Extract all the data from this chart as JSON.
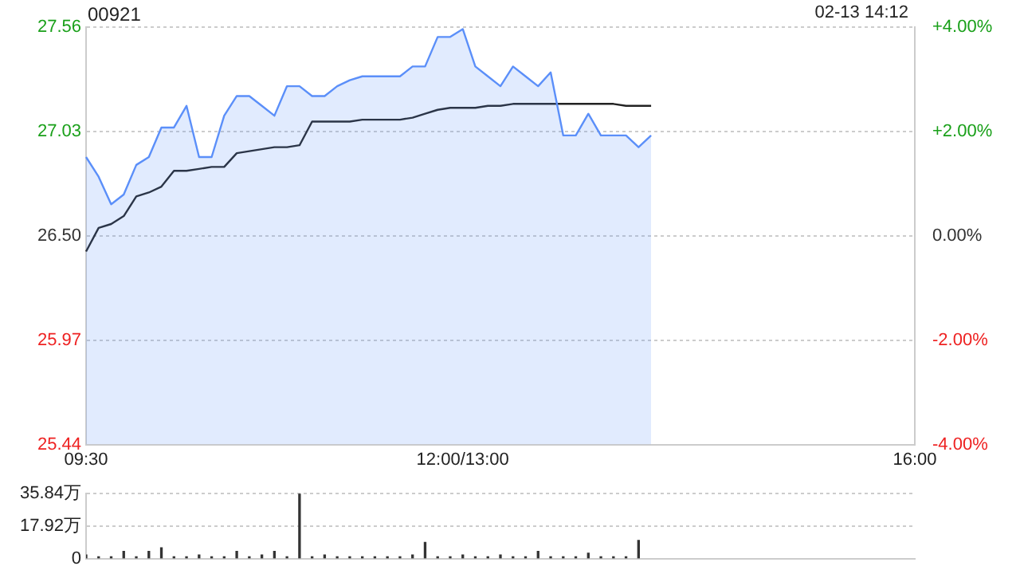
{
  "chart_data": [
    {
      "type": "line",
      "title": "00921",
      "subtitle": "02-13 14:12",
      "marker": "none",
      "grid": "y",
      "legend": false,
      "categories": [
        "09:30",
        null,
        null,
        null,
        null,
        null,
        null,
        null,
        null,
        null,
        null,
        null,
        null,
        null,
        null,
        null,
        null,
        null,
        null,
        null,
        null,
        null,
        null,
        null,
        null,
        null,
        null,
        null,
        null,
        null,
        "12:00/13:00",
        null,
        null,
        null,
        null,
        null,
        null,
        null,
        null,
        null,
        null,
        null,
        null,
        null,
        null,
        null,
        null,
        null,
        null,
        null,
        null,
        null,
        null,
        null,
        null,
        null,
        null,
        null,
        null,
        null,
        null,
        null,
        null,
        null,
        null,
        null,
        "16:00"
      ],
      "ylim": [
        25.44,
        27.56
      ],
      "yticks": [
        25.44,
        25.97,
        {
          "value": 26.5,
          "label": "26.50"
        },
        27.03,
        27.56
      ],
      "y2lim": [
        -4,
        4
      ],
      "y2ticks": [
        {
          "value": -4,
          "label": "-4.00%"
        },
        {
          "value": -2,
          "label": "-2.00%"
        },
        {
          "value": 0,
          "label": "0.00%"
        },
        {
          "value": 2,
          "label": "+2.00%"
        },
        {
          "value": 4,
          "label": "+4.00%"
        }
      ],
      "series": [
        {
          "type": "area",
          "color": "#5b8ff9",
          "values": [
            26.9,
            26.8,
            26.66,
            26.71,
            26.86,
            26.9,
            27.05,
            27.05,
            27.16,
            26.9,
            26.9,
            27.11,
            27.21,
            27.21,
            27.16,
            27.11,
            27.26,
            27.26,
            27.21,
            27.21,
            27.26,
            27.29,
            27.31,
            27.31,
            27.31,
            27.31,
            27.36,
            27.36,
            27.51,
            27.51,
            27.55,
            27.36,
            27.31,
            27.26,
            27.36,
            27.31,
            27.26,
            27.33,
            27.01,
            27.01,
            27.12,
            27.01,
            27.01,
            27.01,
            26.95,
            27.01,
            null,
            null,
            null,
            null,
            null,
            null,
            null,
            null,
            null,
            null,
            null,
            null,
            null,
            null,
            null,
            null,
            null,
            null,
            null,
            null,
            null
          ]
        },
        {
          "type": "line",
          "color": "#222222",
          "values": [
            26.42,
            26.54,
            26.56,
            26.6,
            26.7,
            26.72,
            26.75,
            26.83,
            26.83,
            26.84,
            26.85,
            26.85,
            26.92,
            26.93,
            26.94,
            26.95,
            26.95,
            26.96,
            27.08,
            27.08,
            27.08,
            27.08,
            27.09,
            27.09,
            27.09,
            27.09,
            27.1,
            27.12,
            27.14,
            27.15,
            27.15,
            27.15,
            27.16,
            27.16,
            27.17,
            27.17,
            27.17,
            27.17,
            27.17,
            27.17,
            27.17,
            27.17,
            27.17,
            27.16,
            27.16,
            27.16,
            null,
            null,
            null,
            null,
            null,
            null,
            null,
            null,
            null,
            null,
            null,
            null,
            null,
            null,
            null,
            null,
            null,
            null,
            null,
            null,
            null
          ]
        }
      ]
    },
    {
      "type": "bar",
      "color": "#333333",
      "grid": "y",
      "legend": false,
      "tick_labels": "y",
      "categories": [
        null,
        null,
        null,
        null,
        null,
        null,
        null,
        null,
        null,
        null,
        null,
        null,
        null,
        null,
        null,
        null,
        null,
        null,
        null,
        null,
        null,
        null,
        null,
        null,
        null,
        null,
        null,
        null,
        null,
        null,
        null,
        null,
        null,
        null,
        null,
        null,
        null,
        null,
        null,
        null,
        null,
        null,
        null,
        null,
        null,
        null,
        null,
        null,
        null,
        null,
        null,
        null,
        null,
        null,
        null,
        null,
        null,
        null,
        null,
        null,
        null,
        null,
        null,
        null,
        null,
        null,
        null
      ],
      "ylim": [
        0,
        35.84
      ],
      "yticks": [
        0,
        {
          "value": 17.92,
          "label": "17.92万"
        },
        {
          "value": 35.84,
          "label": "35.84万"
        }
      ],
      "values": [
        2,
        1,
        1,
        4,
        1,
        4,
        6,
        1,
        1,
        2,
        1,
        1,
        4,
        1,
        2,
        4,
        1,
        35.84,
        1,
        2,
        1,
        1,
        1,
        1,
        1,
        1,
        2,
        9,
        1,
        1,
        2,
        1,
        1,
        2,
        1,
        1,
        4,
        1,
        1,
        1,
        3,
        1,
        1,
        1,
        10,
        null,
        null,
        null,
        null,
        null,
        null,
        null,
        null,
        null,
        null,
        null,
        null,
        null,
        null,
        null,
        null,
        null,
        null,
        null,
        null,
        null,
        null
      ]
    }
  ]
}
